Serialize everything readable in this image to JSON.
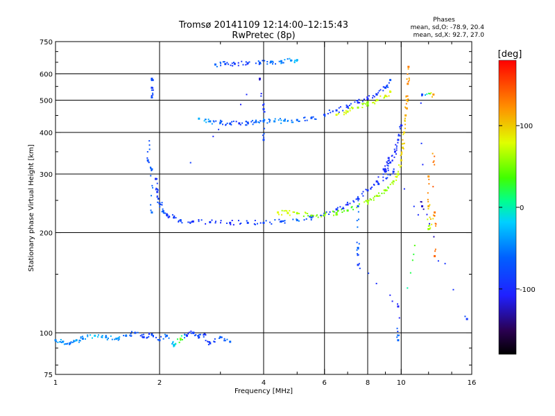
{
  "header": {
    "title_line1": "Tromsø 20141109 12:14:00–12:15:43",
    "title_line2": "RwPretec (8p)",
    "stats_heading": "Phases",
    "stats_O": "mean, sd,O: -78.9, 20.4",
    "stats_X": "mean, sd,X:  92.7, 27.0"
  },
  "colorbar": {
    "unit": "[deg]",
    "range": [
      -180,
      180
    ],
    "ticks": [
      {
        "value": 100,
        "label": "100"
      },
      {
        "value": 0,
        "label": "0"
      },
      {
        "value": -100,
        "label": "-100"
      }
    ]
  },
  "chart_data": {
    "type": "scatter",
    "xlabel": "Frequency [MHz]",
    "ylabel": "Stationary phase Virtual Height [km]",
    "xscale": "log",
    "yscale": "log",
    "xlim": [
      1,
      16
    ],
    "ylim": [
      75,
      750
    ],
    "grid": true,
    "xticks": [
      {
        "value": 1,
        "label": "1"
      },
      {
        "value": 2,
        "label": "2"
      },
      {
        "value": 4,
        "label": "4"
      },
      {
        "value": 6,
        "label": "6"
      },
      {
        "value": 8,
        "label": "8"
      },
      {
        "value": 10,
        "label": "10"
      },
      {
        "value": 16,
        "label": "16"
      }
    ],
    "xgrid": [
      2,
      4,
      6,
      8,
      10
    ],
    "xminor": [
      3,
      5,
      7,
      9,
      12,
      14
    ],
    "yticks": [
      {
        "value": 75,
        "label": "75"
      },
      {
        "value": 100,
        "label": "100"
      },
      {
        "value": 200,
        "label": "200"
      },
      {
        "value": 300,
        "label": "300"
      },
      {
        "value": 400,
        "label": "400"
      },
      {
        "value": 500,
        "label": "500"
      },
      {
        "value": 600,
        "label": "600"
      },
      {
        "value": 750,
        "label": "750"
      }
    ],
    "ygrid": [
      100,
      200,
      300,
      400,
      500,
      600
    ],
    "yminor": [
      80,
      90,
      150,
      250,
      350,
      450,
      550,
      650,
      700
    ],
    "color_value": "phase [deg]",
    "traces": [
      {
        "id": "E-layer",
        "points": [
          [
            1.0,
            95,
            -45
          ],
          [
            1.05,
            94,
            -40
          ],
          [
            1.1,
            93,
            -50
          ],
          [
            1.15,
            95,
            -35
          ],
          [
            1.2,
            96,
            -55
          ],
          [
            1.3,
            98,
            -20
          ],
          [
            1.4,
            97,
            -45
          ],
          [
            1.5,
            96,
            -40
          ],
          [
            1.6,
            98,
            -60
          ],
          [
            1.7,
            100,
            -75
          ],
          [
            1.8,
            97,
            -90
          ],
          [
            1.9,
            99,
            -85
          ],
          [
            2.0,
            95,
            -70
          ],
          [
            2.1,
            98,
            -60
          ],
          [
            2.2,
            92,
            -20
          ],
          [
            2.3,
            96,
            60
          ],
          [
            2.4,
            98,
            -100
          ],
          [
            2.5,
            100,
            -90
          ],
          [
            2.6,
            97,
            -80
          ],
          [
            2.7,
            99,
            -95
          ],
          [
            2.8,
            93,
            -85
          ],
          [
            3.0,
            97,
            -70
          ],
          [
            3.2,
            94,
            -60
          ]
        ]
      },
      {
        "id": "F-layer-1st-O",
        "points": [
          [
            1.95,
            290,
            -100
          ],
          [
            1.97,
            265,
            -95
          ],
          [
            2.0,
            245,
            -80
          ],
          [
            2.05,
            232,
            -70
          ],
          [
            2.1,
            226,
            -90
          ],
          [
            2.2,
            222,
            -85
          ],
          [
            2.3,
            218,
            -80
          ],
          [
            2.5,
            216,
            -95
          ],
          [
            2.8,
            215,
            -90
          ],
          [
            3.2,
            214,
            -100
          ],
          [
            3.6,
            214,
            -85
          ],
          [
            4.0,
            214,
            -80
          ],
          [
            4.5,
            216,
            -70
          ],
          [
            5.0,
            218,
            -60
          ],
          [
            5.5,
            222,
            -70
          ],
          [
            6.0,
            228,
            -85
          ],
          [
            6.5,
            235,
            -95
          ],
          [
            7.0,
            243,
            -100
          ],
          [
            7.5,
            253,
            -90
          ],
          [
            8.0,
            268,
            -95
          ],
          [
            8.5,
            285,
            -100
          ],
          [
            9.0,
            305,
            -90
          ],
          [
            9.3,
            325,
            -95
          ],
          [
            9.6,
            350,
            -100
          ],
          [
            9.8,
            380,
            -95
          ],
          [
            10.0,
            420,
            -100
          ]
        ]
      },
      {
        "id": "F-layer-1st-X",
        "points": [
          [
            4.4,
            230,
            80
          ],
          [
            4.7,
            229,
            75
          ],
          [
            5.0,
            229,
            70
          ],
          [
            5.5,
            225,
            55
          ],
          [
            6.0,
            226,
            60
          ],
          [
            6.5,
            229,
            50
          ],
          [
            7.0,
            233,
            40
          ],
          [
            7.5,
            240,
            45
          ],
          [
            8.0,
            248,
            60
          ],
          [
            8.5,
            258,
            65
          ],
          [
            9.0,
            268,
            55
          ],
          [
            9.5,
            285,
            60
          ],
          [
            9.8,
            300,
            75
          ],
          [
            10.0,
            330,
            90
          ],
          [
            10.1,
            360,
            95
          ],
          [
            10.2,
            400,
            100
          ],
          [
            10.3,
            450,
            110
          ],
          [
            10.4,
            500,
            120
          ],
          [
            10.45,
            560,
            125
          ],
          [
            10.5,
            630,
            130
          ]
        ]
      },
      {
        "id": "F-layer-2nd",
        "points": [
          [
            2.6,
            440,
            -30
          ],
          [
            2.8,
            432,
            -50
          ],
          [
            3.0,
            428,
            -70
          ],
          [
            3.2,
            425,
            -80
          ],
          [
            3.4,
            426,
            -90
          ],
          [
            3.6,
            428,
            -75
          ],
          [
            3.8,
            430,
            -60
          ],
          [
            4.0,
            432,
            -55
          ],
          [
            4.3,
            432,
            -45
          ],
          [
            4.6,
            434,
            -50
          ],
          [
            5.0,
            436,
            -60
          ],
          [
            5.5,
            442,
            -75
          ],
          [
            6.0,
            452,
            -80
          ],
          [
            6.5,
            466,
            -85
          ],
          [
            7.0,
            478,
            -90
          ],
          [
            7.5,
            492,
            -95
          ],
          [
            8.0,
            505,
            -100
          ],
          [
            8.5,
            520,
            -90
          ],
          [
            9.0,
            545,
            -80
          ],
          [
            9.3,
            575,
            -70
          ]
        ]
      },
      {
        "id": "F-layer-2nd-X",
        "points": [
          [
            6.5,
            452,
            80
          ],
          [
            7.0,
            462,
            70
          ],
          [
            7.5,
            475,
            60
          ],
          [
            8.0,
            488,
            55
          ],
          [
            8.5,
            500,
            70
          ],
          [
            9.0,
            515,
            80
          ],
          [
            9.3,
            530,
            90
          ]
        ]
      },
      {
        "id": "F-layer-3rd",
        "points": [
          [
            2.9,
            640,
            -60
          ],
          [
            3.1,
            642,
            -80
          ],
          [
            3.3,
            643,
            -90
          ],
          [
            3.6,
            646,
            -85
          ],
          [
            3.9,
            648,
            -70
          ],
          [
            4.2,
            652,
            -60
          ],
          [
            4.5,
            655,
            -50
          ],
          [
            4.8,
            658,
            -40
          ],
          [
            5.0,
            660,
            -30
          ]
        ]
      },
      {
        "id": "spread-vertical",
        "points": [
          [
            1.9,
            580,
            -80
          ],
          [
            1.9,
            545,
            -90
          ],
          [
            1.9,
            510,
            -75
          ],
          [
            1.85,
            330,
            -70
          ],
          [
            1.9,
            310,
            -60
          ],
          [
            1.9,
            230,
            -55
          ],
          [
            3.9,
            580,
            -120
          ],
          [
            4.0,
            470,
            -90
          ],
          [
            4.0,
            380,
            -80
          ]
        ]
      },
      {
        "id": "scattered-misc",
        "points": [
          [
            7.5,
            240,
            -70
          ],
          [
            7.5,
            180,
            -60
          ],
          [
            7.5,
            160,
            -90
          ],
          [
            9.8,
            120,
            -110
          ],
          [
            9.8,
            95,
            -60
          ],
          [
            12.0,
            295,
            120
          ],
          [
            12.0,
            240,
            110
          ],
          [
            12.0,
            205,
            60
          ],
          [
            12.5,
            230,
            130
          ],
          [
            12.5,
            170,
            140
          ],
          [
            12.4,
            520,
            120
          ],
          [
            11.5,
            520,
            -80
          ],
          [
            11.5,
            240,
            -120
          ],
          [
            15.5,
            110,
            -90
          ],
          [
            9.2,
            335,
            -100
          ],
          [
            8.9,
            310,
            -95
          ],
          [
            9.5,
            305,
            -90
          ],
          [
            8.6,
            280,
            -85
          ]
        ]
      }
    ]
  }
}
